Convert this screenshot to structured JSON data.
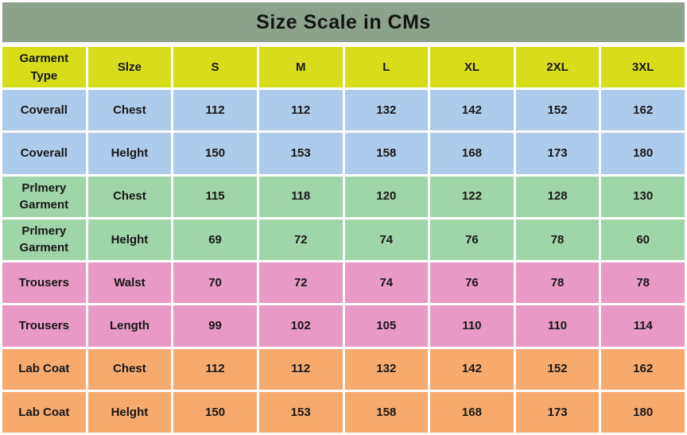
{
  "title": "Size Scale in CMs",
  "colors": {
    "title_bg": "#8ca28d",
    "header_bg": "#d8dc1b",
    "coverall_row_bg": "#adcbea",
    "primery_row_bg": "#a0d5a8",
    "trousers_row_bg": "#e89ac4",
    "labcoat_row_bg": "#f6aa6e",
    "text": "#171717",
    "grid_border": "#ffffff"
  },
  "chart_data": {
    "type": "table",
    "title": "Size Scale in CMs",
    "columns": [
      "Garment Type",
      "Slze",
      "S",
      "M",
      "L",
      "XL",
      "2XL",
      "3XL"
    ],
    "rows": [
      {
        "garment": "Coverall",
        "measure": "Chest",
        "group": "coverall",
        "values": [
          112,
          112,
          132,
          142,
          152,
          162
        ]
      },
      {
        "garment": "Coverall",
        "measure": "Helght",
        "group": "coverall",
        "values": [
          150,
          153,
          158,
          168,
          173,
          180
        ]
      },
      {
        "garment": "Prlmery Garment",
        "measure": "Chest",
        "group": "primery",
        "values": [
          115,
          118,
          120,
          122,
          128,
          130
        ]
      },
      {
        "garment": "Prlmery Garment",
        "measure": "Helght",
        "group": "primery",
        "values": [
          69,
          72,
          74,
          76,
          78,
          60
        ]
      },
      {
        "garment": "Trousers",
        "measure": "Walst",
        "group": "trousers",
        "values": [
          70,
          72,
          74,
          76,
          78,
          78
        ]
      },
      {
        "garment": "Trousers",
        "measure": "Length",
        "group": "trousers",
        "values": [
          99,
          102,
          105,
          110,
          110,
          114
        ]
      },
      {
        "garment": "Lab Coat",
        "measure": "Chest",
        "group": "labcoat",
        "values": [
          112,
          112,
          132,
          142,
          152,
          162
        ]
      },
      {
        "garment": "Lab Coat",
        "measure": "Helght",
        "group": "labcoat",
        "values": [
          150,
          153,
          158,
          168,
          173,
          180
        ]
      }
    ]
  }
}
